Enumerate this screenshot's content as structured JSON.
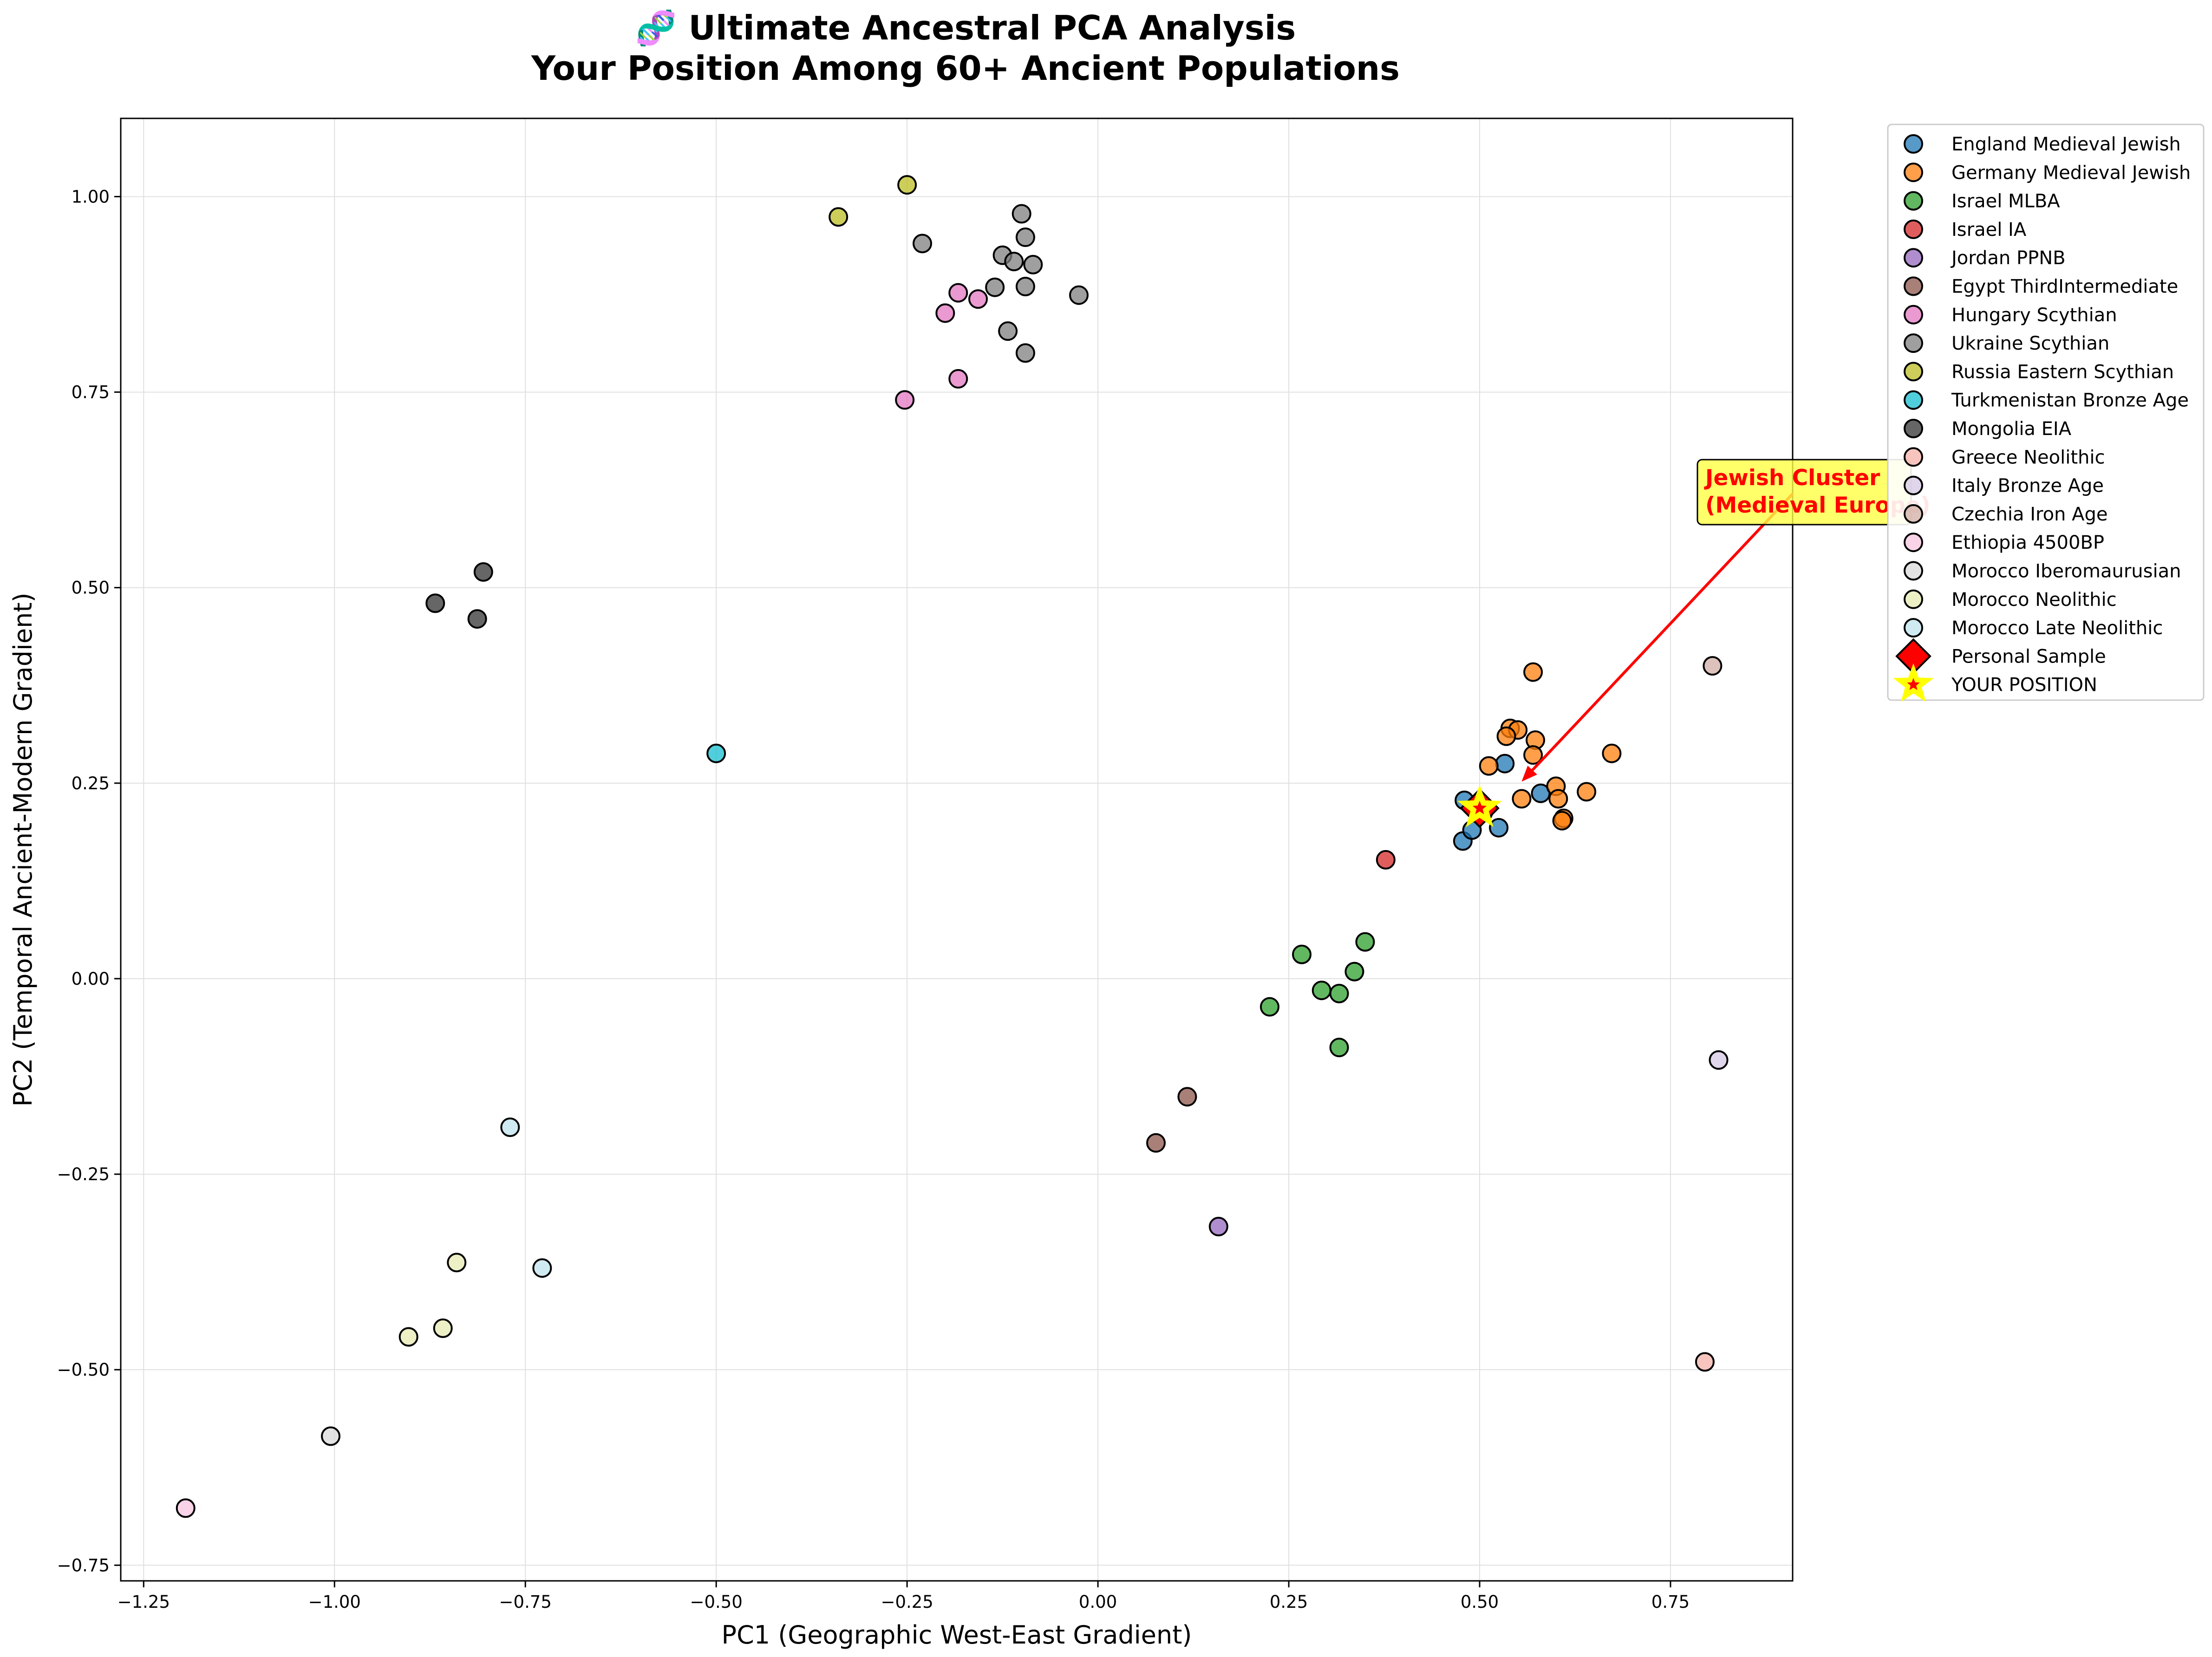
{
  "chart_data": {
    "type": "scatter",
    "title": "🧬 Ultimate Ancestral PCA Analysis",
    "subtitle": "Your Position Among 60+ Ancient Populations",
    "xlabel": "PC1 (Geographic West-East Gradient)",
    "ylabel": "PC2 (Temporal Ancient-Modern Gradient)",
    "xlim": [
      -1.28,
      0.91
    ],
    "ylim": [
      -0.77,
      1.1
    ],
    "xticks": [
      -1.25,
      -1.0,
      -0.75,
      -0.5,
      -0.25,
      0.0,
      0.25,
      0.5,
      0.75
    ],
    "xtick_labels": [
      "−1.25",
      "−1.00",
      "−0.75",
      "−0.50",
      "−0.25",
      "0.00",
      "0.25",
      "0.50",
      "0.75"
    ],
    "yticks": [
      -0.75,
      -0.5,
      -0.25,
      0.0,
      0.25,
      0.5,
      0.75,
      1.0
    ],
    "ytick_labels": [
      "−0.75",
      "−0.50",
      "−0.25",
      "0.00",
      "0.25",
      "0.50",
      "0.75",
      "1.00"
    ],
    "grid": true,
    "legend_position": "outside-right",
    "series": [
      {
        "name": "England Medieval Jewish",
        "color": "#1f77b4",
        "marker": "circle",
        "points": [
          [
            0.48,
            0.228
          ],
          [
            0.533,
            0.275
          ],
          [
            0.478,
            0.176
          ],
          [
            0.49,
            0.19
          ],
          [
            0.525,
            0.193
          ],
          [
            0.58,
            0.237
          ],
          [
            0.505,
            0.213
          ]
        ]
      },
      {
        "name": "Germany Medieval Jewish",
        "color": "#ff7f0e",
        "marker": "circle",
        "points": [
          [
            0.57,
            0.392
          ],
          [
            0.54,
            0.32
          ],
          [
            0.55,
            0.318
          ],
          [
            0.535,
            0.31
          ],
          [
            0.573,
            0.305
          ],
          [
            0.57,
            0.286
          ],
          [
            0.512,
            0.272
          ],
          [
            0.673,
            0.288
          ],
          [
            0.6,
            0.246
          ],
          [
            0.64,
            0.239
          ],
          [
            0.555,
            0.23
          ],
          [
            0.603,
            0.23
          ],
          [
            0.61,
            0.205
          ],
          [
            0.608,
            0.202
          ],
          [
            0.5,
            0.218
          ]
        ]
      },
      {
        "name": "Israel MLBA",
        "color": "#2ca02c",
        "marker": "circle",
        "points": [
          [
            0.35,
            0.047
          ],
          [
            0.267,
            0.031
          ],
          [
            0.336,
            0.009
          ],
          [
            0.293,
            -0.015
          ],
          [
            0.316,
            -0.019
          ],
          [
            0.225,
            -0.036
          ],
          [
            0.316,
            -0.088
          ]
        ]
      },
      {
        "name": "Israel IA",
        "color": "#d62728",
        "marker": "circle",
        "points": [
          [
            0.377,
            0.152
          ]
        ]
      },
      {
        "name": "Jordan PPNB",
        "color": "#9467bd",
        "marker": "circle",
        "points": [
          [
            0.158,
            -0.317
          ]
        ]
      },
      {
        "name": "Egypt ThirdIntermediate",
        "color": "#8c564b",
        "marker": "circle",
        "points": [
          [
            0.117,
            -0.151
          ],
          [
            0.076,
            -0.21
          ]
        ]
      },
      {
        "name": "Hungary Scythian",
        "color": "#e377c2",
        "marker": "circle",
        "points": [
          [
            -0.183,
            0.877
          ],
          [
            -0.157,
            0.869
          ],
          [
            -0.2,
            0.851
          ],
          [
            -0.183,
            0.767
          ],
          [
            -0.253,
            0.74
          ]
        ]
      },
      {
        "name": "Ukraine Scythian",
        "color": "#7f7f7f",
        "marker": "circle",
        "points": [
          [
            -0.1,
            0.978
          ],
          [
            -0.095,
            0.948
          ],
          [
            -0.23,
            0.94
          ],
          [
            -0.125,
            0.925
          ],
          [
            -0.11,
            0.917
          ],
          [
            -0.085,
            0.913
          ],
          [
            -0.135,
            0.884
          ],
          [
            -0.095,
            0.885
          ],
          [
            -0.025,
            0.874
          ],
          [
            -0.118,
            0.828
          ],
          [
            -0.095,
            0.8
          ]
        ]
      },
      {
        "name": "Russia Eastern Scythian",
        "color": "#bcbd22",
        "marker": "circle",
        "points": [
          [
            -0.25,
            1.015
          ],
          [
            -0.34,
            0.974
          ]
        ]
      },
      {
        "name": "Turkmenistan Bronze Age",
        "color": "#17becf",
        "marker": "circle",
        "points": [
          [
            -0.5,
            0.288
          ]
        ]
      },
      {
        "name": "Mongolia EIA",
        "color": "#333333",
        "marker": "circle",
        "points": [
          [
            -0.805,
            0.52
          ],
          [
            -0.868,
            0.48
          ],
          [
            -0.813,
            0.46
          ]
        ]
      },
      {
        "name": "Greece Neolithic",
        "color": "#f5b1a8",
        "marker": "circle",
        "points": [
          [
            0.795,
            -0.49
          ]
        ]
      },
      {
        "name": "Italy Bronze Age",
        "color": "#d5c8e4",
        "marker": "circle",
        "points": [
          [
            0.813,
            -0.104
          ]
        ]
      },
      {
        "name": "Czechia Iron Age",
        "color": "#d0ada3",
        "marker": "circle",
        "points": [
          [
            0.805,
            0.4
          ]
        ]
      },
      {
        "name": "Ethiopia 4500BP",
        "color": "#f7c5e0",
        "marker": "circle",
        "points": [
          [
            -1.195,
            -0.677
          ]
        ]
      },
      {
        "name": "Morocco Iberomaurusian",
        "color": "#d9d9d9",
        "marker": "circle",
        "points": [
          [
            -1.005,
            -0.585
          ]
        ]
      },
      {
        "name": "Morocco Neolithic",
        "color": "#e7e9b1",
        "marker": "circle",
        "points": [
          [
            -0.84,
            -0.363
          ],
          [
            -0.858,
            -0.447
          ],
          [
            -0.903,
            -0.458
          ]
        ]
      },
      {
        "name": "Morocco Late Neolithic",
        "color": "#bfe4ec",
        "marker": "circle",
        "points": [
          [
            -0.77,
            -0.19
          ],
          [
            -0.728,
            -0.37
          ]
        ]
      },
      {
        "name": "Personal Sample",
        "color": "#ff0000",
        "marker": "diamond",
        "points": [
          [
            0.5,
            0.218
          ]
        ]
      },
      {
        "name": "YOUR POSITION",
        "color": "#ffff00",
        "marker": "star",
        "points": [
          [
            0.5,
            0.218
          ]
        ]
      }
    ],
    "annotation": {
      "text_line1": "Jewish Cluster",
      "text_line2": "(Medieval Europe)",
      "box_color": "#ffff44",
      "text_color": "#ff0000",
      "arrow_target": [
        0.555,
        0.252
      ],
      "arrow_source": [
        0.91,
        0.62
      ]
    }
  }
}
